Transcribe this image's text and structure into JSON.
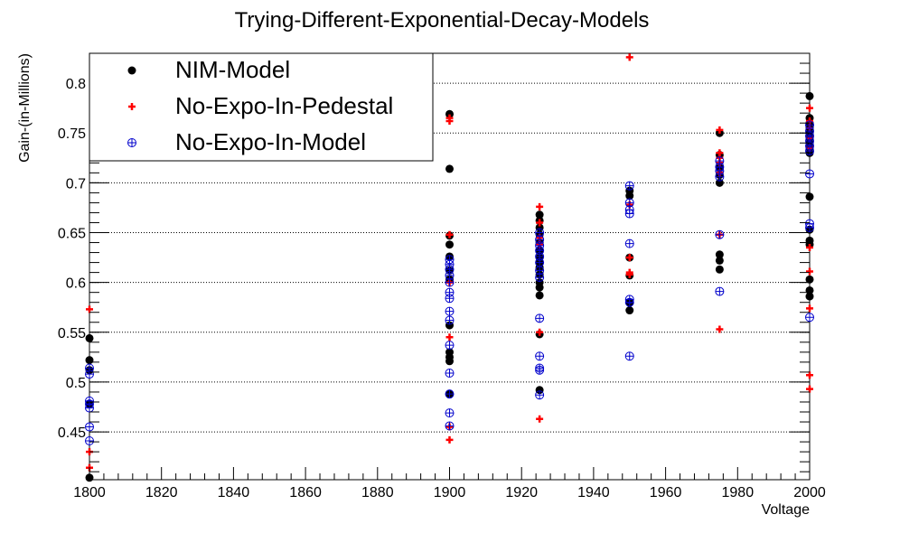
{
  "chart_data": {
    "type": "scatter",
    "title": "Trying-Different-Exponential-Decay-Models",
    "xlabel": "Voltage",
    "ylabel": "Gain-(in-Millions)",
    "xlim": [
      1800,
      2000
    ],
    "ylim": [
      0.402,
      0.83
    ],
    "x_ticks": [
      1800,
      1820,
      1840,
      1860,
      1880,
      1900,
      1920,
      1940,
      1960,
      1980,
      2000
    ],
    "y_ticks": [
      0.45,
      0.5,
      0.55,
      0.6,
      0.65,
      0.7,
      0.75,
      0.8
    ],
    "y_tick_labels": [
      "0.45",
      "0.5",
      "0.55",
      "0.6",
      "0.65",
      "0.7",
      "0.75",
      "0.8"
    ],
    "grid": "horizontal dotted",
    "legend_position": "top-left",
    "series": [
      {
        "name": "NIM-Model",
        "marker": "filled-circle",
        "color": "#000000",
        "points": [
          [
            1800,
            0.544
          ],
          [
            1800,
            0.522
          ],
          [
            1800,
            0.512
          ],
          [
            1800,
            0.478
          ],
          [
            1800,
            0.404
          ],
          [
            1900,
            0.769
          ],
          [
            1900,
            0.714
          ],
          [
            1900,
            0.647
          ],
          [
            1900,
            0.638
          ],
          [
            1900,
            0.626
          ],
          [
            1900,
            0.612
          ],
          [
            1900,
            0.603
          ],
          [
            1900,
            0.557
          ],
          [
            1900,
            0.53
          ],
          [
            1900,
            0.525
          ],
          [
            1900,
            0.521
          ],
          [
            1900,
            0.488
          ],
          [
            1925,
            0.668
          ],
          [
            1925,
            0.662
          ],
          [
            1925,
            0.655
          ],
          [
            1925,
            0.648
          ],
          [
            1925,
            0.64
          ],
          [
            1925,
            0.632
          ],
          [
            1925,
            0.625
          ],
          [
            1925,
            0.62
          ],
          [
            1925,
            0.615
          ],
          [
            1925,
            0.608
          ],
          [
            1925,
            0.6
          ],
          [
            1925,
            0.595
          ],
          [
            1925,
            0.587
          ],
          [
            1925,
            0.548
          ],
          [
            1925,
            0.492
          ],
          [
            1950,
            0.692
          ],
          [
            1950,
            0.687
          ],
          [
            1950,
            0.625
          ],
          [
            1950,
            0.607
          ],
          [
            1950,
            0.58
          ],
          [
            1950,
            0.572
          ],
          [
            1975,
            0.75
          ],
          [
            1975,
            0.728
          ],
          [
            1975,
            0.715
          ],
          [
            1975,
            0.708
          ],
          [
            1975,
            0.7
          ],
          [
            1975,
            0.628
          ],
          [
            1975,
            0.622
          ],
          [
            1975,
            0.613
          ],
          [
            2000,
            0.787
          ],
          [
            2000,
            0.765
          ],
          [
            2000,
            0.76
          ],
          [
            2000,
            0.755
          ],
          [
            2000,
            0.75
          ],
          [
            2000,
            0.745
          ],
          [
            2000,
            0.74
          ],
          [
            2000,
            0.735
          ],
          [
            2000,
            0.73
          ],
          [
            2000,
            0.686
          ],
          [
            2000,
            0.653
          ],
          [
            2000,
            0.642
          ],
          [
            2000,
            0.638
          ],
          [
            2000,
            0.603
          ],
          [
            2000,
            0.592
          ],
          [
            2000,
            0.586
          ]
        ]
      },
      {
        "name": "No-Expo-In-Pedestal",
        "marker": "plus",
        "color": "#ff0000",
        "points": [
          [
            1800,
            0.573
          ],
          [
            1800,
            0.43
          ],
          [
            1800,
            0.414
          ],
          [
            1900,
            0.765
          ],
          [
            1900,
            0.762
          ],
          [
            1900,
            0.648
          ],
          [
            1900,
            0.6
          ],
          [
            1900,
            0.545
          ],
          [
            1900,
            0.455
          ],
          [
            1900,
            0.442
          ],
          [
            1925,
            0.676
          ],
          [
            1925,
            0.66
          ],
          [
            1925,
            0.645
          ],
          [
            1925,
            0.638
          ],
          [
            1925,
            0.55
          ],
          [
            1925,
            0.463
          ],
          [
            1950,
            0.826
          ],
          [
            1950,
            0.678
          ],
          [
            1950,
            0.625
          ],
          [
            1950,
            0.61
          ],
          [
            1950,
            0.608
          ],
          [
            1975,
            0.753
          ],
          [
            1975,
            0.73
          ],
          [
            1975,
            0.725
          ],
          [
            1975,
            0.72
          ],
          [
            1975,
            0.71
          ],
          [
            1975,
            0.648
          ],
          [
            1975,
            0.553
          ],
          [
            2000,
            0.775
          ],
          [
            2000,
            0.762
          ],
          [
            2000,
            0.755
          ],
          [
            2000,
            0.745
          ],
          [
            2000,
            0.735
          ],
          [
            2000,
            0.635
          ],
          [
            2000,
            0.611
          ],
          [
            2000,
            0.574
          ],
          [
            2000,
            0.507
          ],
          [
            2000,
            0.493
          ]
        ]
      },
      {
        "name": "No-Expo-In-Model",
        "marker": "open-circle-plus",
        "color": "#0000cc",
        "points": [
          [
            1800,
            0.514
          ],
          [
            1800,
            0.508
          ],
          [
            1800,
            0.481
          ],
          [
            1800,
            0.478
          ],
          [
            1800,
            0.474
          ],
          [
            1800,
            0.455
          ],
          [
            1800,
            0.441
          ],
          [
            1900,
            0.623
          ],
          [
            1900,
            0.618
          ],
          [
            1900,
            0.613
          ],
          [
            1900,
            0.607
          ],
          [
            1900,
            0.6
          ],
          [
            1900,
            0.59
          ],
          [
            1900,
            0.584
          ],
          [
            1900,
            0.571
          ],
          [
            1900,
            0.562
          ],
          [
            1900,
            0.537
          ],
          [
            1900,
            0.509
          ],
          [
            1900,
            0.488
          ],
          [
            1900,
            0.469
          ],
          [
            1900,
            0.456
          ],
          [
            1925,
            0.65
          ],
          [
            1925,
            0.643
          ],
          [
            1925,
            0.637
          ],
          [
            1925,
            0.632
          ],
          [
            1925,
            0.626
          ],
          [
            1925,
            0.62
          ],
          [
            1925,
            0.612
          ],
          [
            1925,
            0.605
          ],
          [
            1925,
            0.564
          ],
          [
            1925,
            0.526
          ],
          [
            1925,
            0.514
          ],
          [
            1925,
            0.512
          ],
          [
            1925,
            0.487
          ],
          [
            1950,
            0.697
          ],
          [
            1950,
            0.68
          ],
          [
            1950,
            0.673
          ],
          [
            1950,
            0.669
          ],
          [
            1950,
            0.639
          ],
          [
            1950,
            0.583
          ],
          [
            1950,
            0.58
          ],
          [
            1950,
            0.526
          ],
          [
            1975,
            0.722
          ],
          [
            1975,
            0.716
          ],
          [
            1975,
            0.712
          ],
          [
            1975,
            0.706
          ],
          [
            1975,
            0.648
          ],
          [
            1975,
            0.591
          ],
          [
            2000,
            0.758
          ],
          [
            2000,
            0.752
          ],
          [
            2000,
            0.747
          ],
          [
            2000,
            0.742
          ],
          [
            2000,
            0.737
          ],
          [
            2000,
            0.732
          ],
          [
            2000,
            0.709
          ],
          [
            2000,
            0.659
          ],
          [
            2000,
            0.655
          ],
          [
            2000,
            0.565
          ]
        ]
      }
    ]
  }
}
